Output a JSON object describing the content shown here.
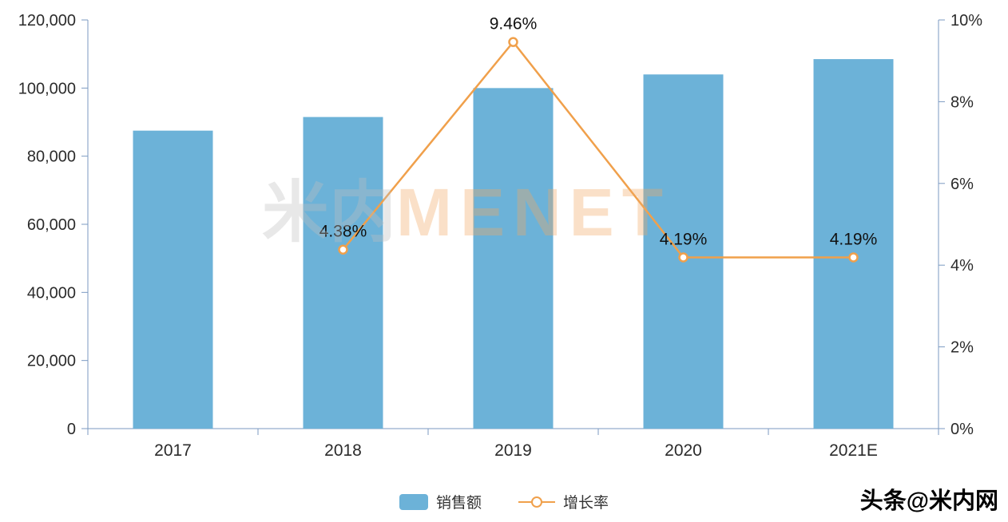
{
  "chart_data": {
    "type": "bar",
    "title": "",
    "categories": [
      "2017",
      "2018",
      "2019",
      "2020",
      "2021E"
    ],
    "series": [
      {
        "name": "销售额",
        "type": "bar",
        "axis": "left",
        "color": "#6CB2D8",
        "values": [
          87500,
          91500,
          100000,
          104000,
          108500
        ]
      },
      {
        "name": "增长率",
        "type": "line",
        "axis": "right",
        "color": "#F0A04B",
        "values": [
          null,
          4.38,
          9.46,
          4.19,
          4.19
        ],
        "labels": [
          "",
          "4.38%",
          "9.46%",
          "4.19%",
          "4.19%"
        ]
      }
    ],
    "left_axis": {
      "min": 0,
      "max": 120000,
      "step": 20000,
      "tick_labels": [
        "0",
        "20,000",
        "40,000",
        "60,000",
        "80,000",
        "100,000",
        "120,000"
      ]
    },
    "right_axis": {
      "min": 0,
      "max": 10,
      "step": 2,
      "tick_labels": [
        "0%",
        "2%",
        "4%",
        "6%",
        "8%",
        "10%"
      ]
    },
    "axis_color": "#7B9AC2",
    "label_color": "#2b2b2b",
    "grid": false,
    "legend_position": "bottom"
  },
  "legend": {
    "sales_label": "销售额",
    "growth_label": "增长率"
  },
  "watermark": {
    "cjk": "米内",
    "latin": "MENET"
  },
  "credit": "头条@米内网"
}
